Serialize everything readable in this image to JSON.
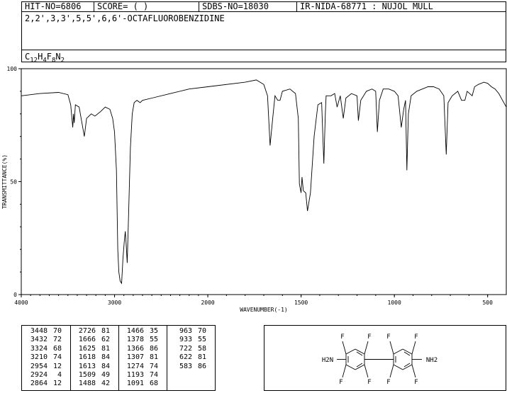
{
  "header": {
    "hit_no": "HIT-NO=6806",
    "score": "SCORE=  (   )",
    "sdbs_no": "SDBS-NO=18030",
    "ir_id": "IR-NIDA-68771 : NUJOL MULL"
  },
  "compound": {
    "name": "2,2',3,3',5,5',6,6'-OCTAFLUOROBENZIDINE",
    "formula_parts": [
      {
        "t": "C",
        "s": "12"
      },
      {
        "t": "H",
        "s": "4"
      },
      {
        "t": "F",
        "s": "8"
      },
      {
        "t": "N",
        "s": "2"
      }
    ]
  },
  "chart_data": {
    "type": "line",
    "title": "",
    "xlabel": "WAVENUMBER(-1)",
    "ylabel": "TRANSMITTANCE(%)",
    "xlim": [
      4000,
      400
    ],
    "ylim": [
      0,
      100
    ],
    "x_ticks": [
      4000,
      3000,
      2000,
      1500,
      1000,
      500
    ],
    "y_ticks": [
      0,
      50,
      100
    ],
    "grid": false,
    "series": [
      {
        "points": [
          [
            4000,
            88
          ],
          [
            3800,
            89
          ],
          [
            3600,
            89.5
          ],
          [
            3500,
            88.5
          ],
          [
            3470,
            84
          ],
          [
            3448,
            74
          ],
          [
            3440,
            80
          ],
          [
            3432,
            76
          ],
          [
            3420,
            84
          ],
          [
            3380,
            83
          ],
          [
            3324,
            70
          ],
          [
            3300,
            78
          ],
          [
            3250,
            80
          ],
          [
            3210,
            79
          ],
          [
            3150,
            81
          ],
          [
            3100,
            83
          ],
          [
            3050,
            82
          ],
          [
            3020,
            78
          ],
          [
            3000,
            72
          ],
          [
            2980,
            55
          ],
          [
            2965,
            20
          ],
          [
            2954,
            10
          ],
          [
            2940,
            6
          ],
          [
            2924,
            5
          ],
          [
            2910,
            16
          ],
          [
            2895,
            24
          ],
          [
            2885,
            28
          ],
          [
            2875,
            22
          ],
          [
            2864,
            14
          ],
          [
            2850,
            35
          ],
          [
            2830,
            65
          ],
          [
            2810,
            80
          ],
          [
            2790,
            85
          ],
          [
            2760,
            86
          ],
          [
            2726,
            85
          ],
          [
            2700,
            86
          ],
          [
            2600,
            87
          ],
          [
            2400,
            89
          ],
          [
            2200,
            91
          ],
          [
            2000,
            92
          ],
          [
            1800,
            94
          ],
          [
            1740,
            95
          ],
          [
            1700,
            93
          ],
          [
            1680,
            88
          ],
          [
            1666,
            66
          ],
          [
            1650,
            80
          ],
          [
            1640,
            88
          ],
          [
            1625,
            86
          ],
          [
            1618,
            86
          ],
          [
            1613,
            86
          ],
          [
            1600,
            90
          ],
          [
            1560,
            91
          ],
          [
            1530,
            89
          ],
          [
            1515,
            78
          ],
          [
            1509,
            49
          ],
          [
            1500,
            45
          ],
          [
            1495,
            52
          ],
          [
            1488,
            46
          ],
          [
            1475,
            45
          ],
          [
            1466,
            37
          ],
          [
            1450,
            45
          ],
          [
            1430,
            70
          ],
          [
            1410,
            84
          ],
          [
            1390,
            85
          ],
          [
            1378,
            58
          ],
          [
            1370,
            80
          ],
          [
            1366,
            88
          ],
          [
            1340,
            88
          ],
          [
            1320,
            89
          ],
          [
            1307,
            83
          ],
          [
            1290,
            88
          ],
          [
            1274,
            78
          ],
          [
            1260,
            87
          ],
          [
            1230,
            89
          ],
          [
            1200,
            88
          ],
          [
            1193,
            77
          ],
          [
            1180,
            86
          ],
          [
            1150,
            90
          ],
          [
            1120,
            91
          ],
          [
            1100,
            90
          ],
          [
            1091,
            72
          ],
          [
            1080,
            86
          ],
          [
            1060,
            91
          ],
          [
            1030,
            91
          ],
          [
            1000,
            90
          ],
          [
            980,
            88
          ],
          [
            963,
            74
          ],
          [
            950,
            82
          ],
          [
            940,
            86
          ],
          [
            933,
            55
          ],
          [
            925,
            80
          ],
          [
            910,
            88
          ],
          [
            880,
            90
          ],
          [
            850,
            91
          ],
          [
            820,
            92
          ],
          [
            790,
            92
          ],
          [
            760,
            91
          ],
          [
            735,
            88
          ],
          [
            722,
            62
          ],
          [
            712,
            85
          ],
          [
            690,
            88
          ],
          [
            660,
            90
          ],
          [
            640,
            86
          ],
          [
            622,
            86
          ],
          [
            610,
            90
          ],
          [
            583,
            88
          ],
          [
            570,
            92
          ],
          [
            550,
            93
          ],
          [
            520,
            94
          ],
          [
            500,
            93.5
          ],
          [
            480,
            92
          ],
          [
            460,
            91
          ],
          [
            440,
            89
          ],
          [
            420,
            86
          ],
          [
            400,
            83
          ]
        ]
      }
    ]
  },
  "peak_table": [
    [
      [
        "3448",
        "70"
      ],
      [
        "3432",
        "72"
      ],
      [
        "3324",
        "68"
      ],
      [
        "3210",
        "74"
      ],
      [
        "2954",
        "12"
      ],
      [
        "2924",
        "4"
      ],
      [
        "2864",
        "12"
      ]
    ],
    [
      [
        "2726",
        "81"
      ],
      [
        "1666",
        "62"
      ],
      [
        "1625",
        "81"
      ],
      [
        "1618",
        "84"
      ],
      [
        "1613",
        "84"
      ],
      [
        "1509",
        "49"
      ],
      [
        "1488",
        "42"
      ]
    ],
    [
      [
        "1466",
        "35"
      ],
      [
        "1378",
        "55"
      ],
      [
        "1366",
        "86"
      ],
      [
        "1307",
        "81"
      ],
      [
        "1274",
        "74"
      ],
      [
        "1193",
        "74"
      ],
      [
        "1091",
        "68"
      ]
    ],
    [
      [
        "963",
        "70"
      ],
      [
        "933",
        "55"
      ],
      [
        "722",
        "58"
      ],
      [
        "622",
        "81"
      ],
      [
        "583",
        "86"
      ]
    ]
  ],
  "structure": {
    "atoms": [
      "F",
      "F",
      "F",
      "F",
      "F",
      "F",
      "F",
      "F",
      "H2N",
      "NH2"
    ]
  }
}
